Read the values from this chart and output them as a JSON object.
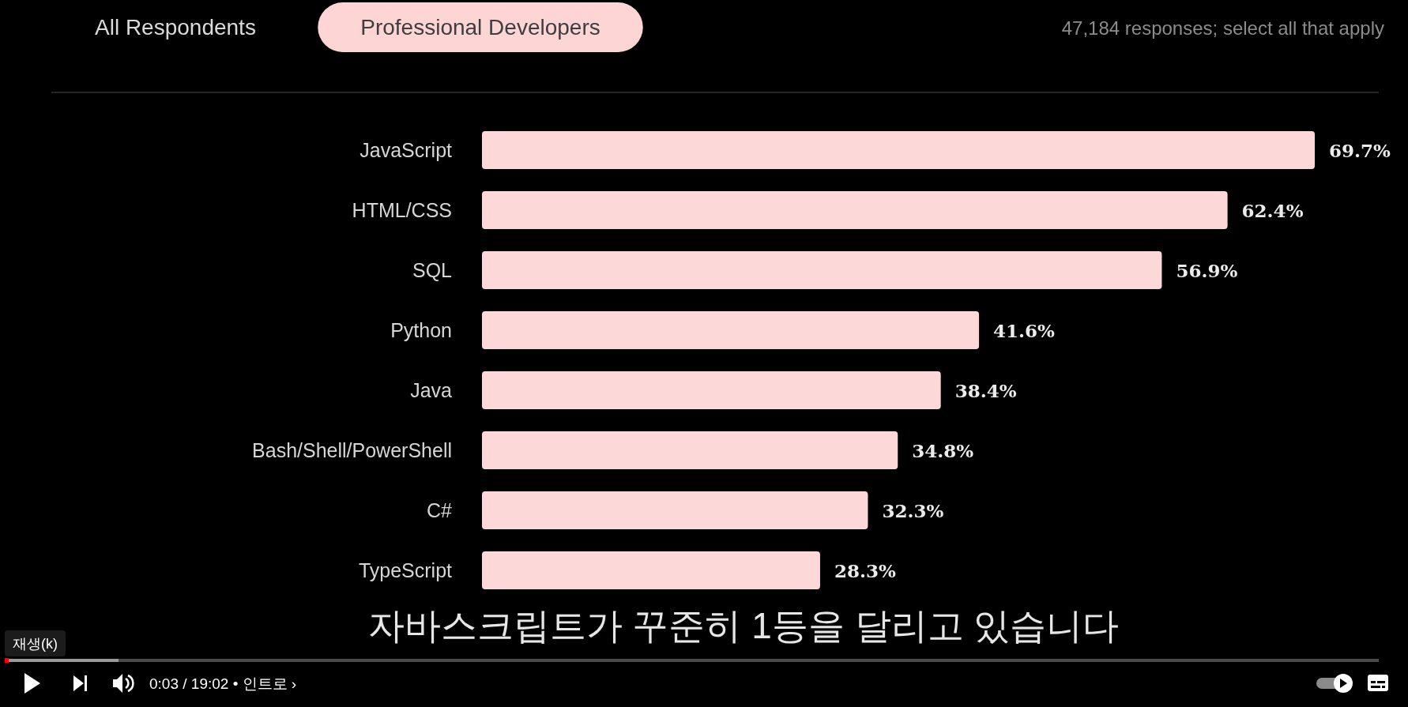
{
  "chart_data": {
    "type": "bar",
    "orientation": "horizontal",
    "subtitle": "47,184 responses; select all that apply",
    "categories": [
      "JavaScript",
      "HTML/CSS",
      "SQL",
      "Python",
      "Java",
      "Bash/Shell/PowerShell",
      "C#",
      "TypeScript"
    ],
    "values": [
      69.7,
      62.4,
      56.9,
      41.6,
      38.4,
      34.8,
      32.3,
      28.3
    ],
    "value_labels": [
      "69.7%",
      "62.4%",
      "56.9%",
      "41.6%",
      "38.4%",
      "34.8%",
      "32.3%",
      "28.3%"
    ],
    "color": "#fdd8d8",
    "annotations": [
      "All Respondents",
      "Professional Developers",
      "자바스크립트가 꾸준히 1등을 달리고 있습니다",
      "재생(k)",
      "0:03 / 19:02 • 인트로 ›"
    ]
  }
}
